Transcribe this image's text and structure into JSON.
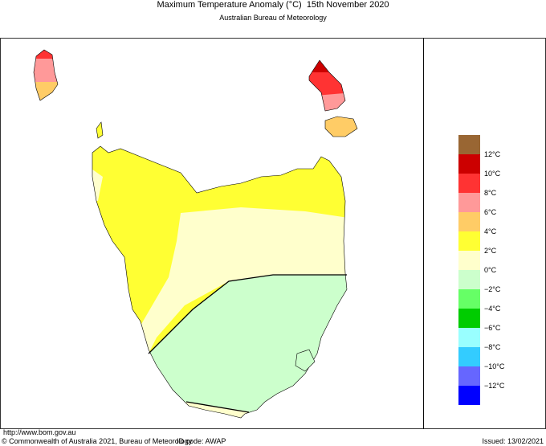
{
  "header": {
    "title": "Maximum Temperature Anomaly (°C)  15th November 2020",
    "subtitle": "Australian Bureau of Meteorology"
  },
  "legend": {
    "labels": [
      "12°C",
      "10°C",
      "8°C",
      "6°C",
      "4°C",
      "2°C",
      "0°C",
      "−2°C",
      "−4°C",
      "−6°C",
      "−8°C",
      "−10°C",
      "−12°C"
    ]
  },
  "footer": {
    "url": "http://www.bom.gov.au",
    "copyright": "© Commonwealth of Australia 2021, Bureau of Meteorology",
    "id_code": "ID code: AWAP",
    "issued": "Issued: 13/02/2021"
  }
}
